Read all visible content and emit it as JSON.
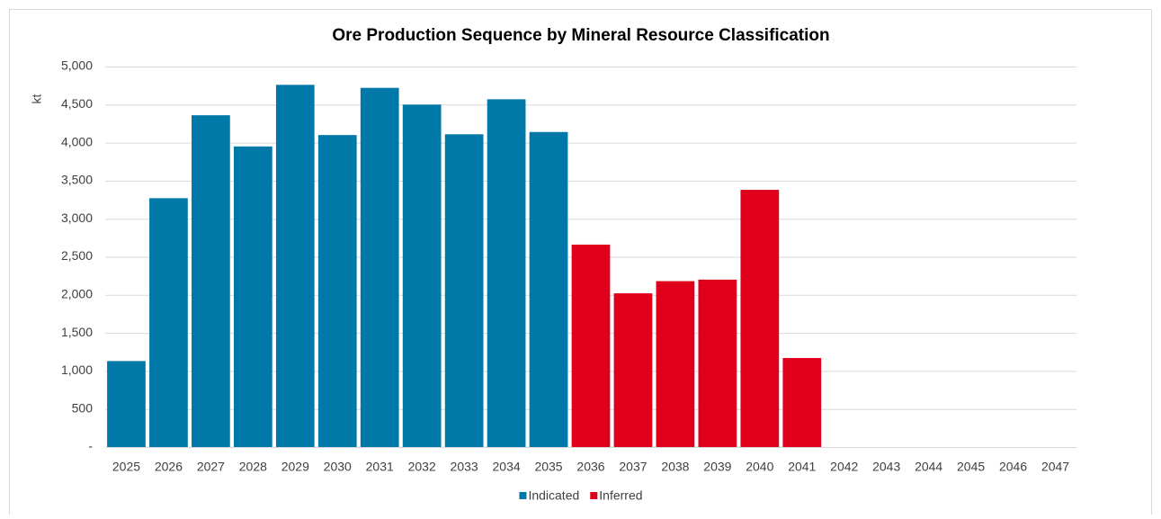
{
  "chart_data": {
    "type": "bar",
    "stacked": true,
    "title": "Ore Production Sequence by Mineral Resource Classification",
    "y_label": "kt",
    "categories": [
      "2025",
      "2026",
      "2027",
      "2028",
      "2029",
      "2030",
      "2031",
      "2032",
      "2033",
      "2034",
      "2035",
      "2036",
      "2037",
      "2038",
      "2039",
      "2040",
      "2041",
      "2042",
      "2043",
      "2044",
      "2045",
      "2046",
      "2047"
    ],
    "series": [
      {
        "name": "Indicated",
        "color": "#0079a8",
        "values": [
          1130,
          3270,
          4360,
          3950,
          4760,
          4100,
          4720,
          4500,
          4110,
          4570,
          4140,
          null,
          null,
          null,
          null,
          null,
          null,
          null,
          null,
          null,
          null,
          null,
          null
        ]
      },
      {
        "name": "Inferred",
        "color": "#e0001b",
        "values": [
          null,
          null,
          null,
          null,
          null,
          null,
          null,
          null,
          null,
          null,
          null,
          2660,
          2020,
          2180,
          2200,
          3380,
          1170,
          null,
          null,
          null,
          null,
          null,
          null
        ]
      }
    ],
    "ylim": [
      0,
      5000
    ],
    "yticks": [
      {
        "value": 0,
        "label": "-"
      },
      500,
      {
        "value": 1000,
        "label": "1,000"
      },
      {
        "value": 1500,
        "label": "1,500"
      },
      {
        "value": 2000,
        "label": "2,000"
      },
      {
        "value": 2500,
        "label": "2,500"
      },
      {
        "value": 3000,
        "label": "3,000"
      },
      {
        "value": 3500,
        "label": "3,500"
      },
      {
        "value": 4000,
        "label": "4,000"
      },
      {
        "value": 4500,
        "label": "4,500"
      },
      {
        "value": 5000,
        "label": "5,000"
      }
    ],
    "grid": true,
    "legend": "bottom"
  }
}
